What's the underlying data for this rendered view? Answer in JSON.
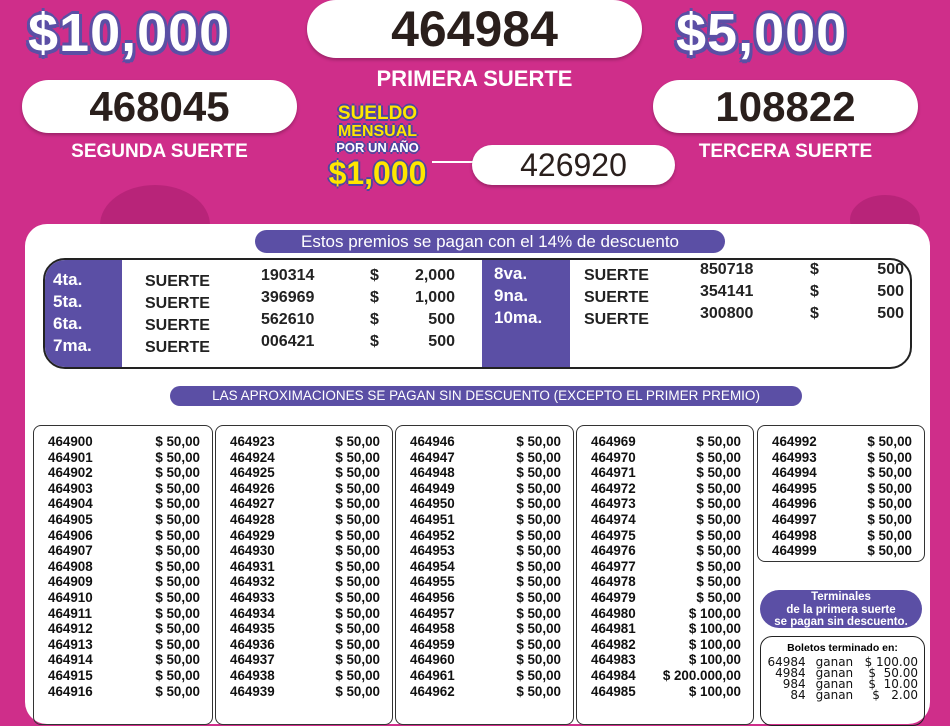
{
  "top": {
    "primera": {
      "number": "464984",
      "label": "PRIMERA SUERTE"
    },
    "segunda": {
      "prize": "$10,000",
      "number": "468045",
      "label": "SEGUNDA SUERTE"
    },
    "tercera": {
      "prize": "$5,000",
      "number": "108822",
      "label": "TERCERA SUERTE"
    },
    "sueldo": {
      "line1": "SUELDO",
      "line2": "MENSUAL",
      "line3": "POR UN AÑO",
      "amount": "$1,000",
      "number": "426920"
    }
  },
  "discount_banner": "Estos premios se pagan con el 14% de descuento",
  "prizes_left": [
    {
      "place": "4ta.",
      "word": "SUERTE",
      "number": "190314",
      "cur": "$",
      "amount": "2,000"
    },
    {
      "place": "5ta.",
      "word": "SUERTE",
      "number": "396969",
      "cur": "$",
      "amount": "1,000"
    },
    {
      "place": "6ta.",
      "word": "SUERTE",
      "number": "562610",
      "cur": "$",
      "amount": "500"
    },
    {
      "place": "7ma.",
      "word": "SUERTE",
      "number": "006421",
      "cur": "$",
      "amount": "500"
    }
  ],
  "prizes_right": [
    {
      "place": "8va.",
      "word": "SUERTE",
      "number": "850718",
      "cur": "$",
      "amount": "500"
    },
    {
      "place": "9na.",
      "word": "SUERTE",
      "number": "354141",
      "cur": "$",
      "amount": "500"
    },
    {
      "place": "10ma.",
      "word": "SUERTE",
      "number": "300800",
      "cur": "$",
      "amount": "500"
    }
  ],
  "approx_banner": "LAS APROXIMACIONES SE PAGAN SIN DESCUENTO (EXCEPTO EL PRIMER PREMIO)",
  "approximations": [
    [
      [
        "464900",
        "$ 50,00"
      ],
      [
        "464901",
        "$ 50,00"
      ],
      [
        "464902",
        "$ 50,00"
      ],
      [
        "464903",
        "$ 50,00"
      ],
      [
        "464904",
        "$ 50,00"
      ],
      [
        "464905",
        "$ 50,00"
      ],
      [
        "464906",
        "$ 50,00"
      ],
      [
        "464907",
        "$ 50,00"
      ],
      [
        "464908",
        "$ 50,00"
      ],
      [
        "464909",
        "$ 50,00"
      ],
      [
        "464910",
        "$ 50,00"
      ],
      [
        "464911",
        "$ 50,00"
      ],
      [
        "464912",
        "$ 50,00"
      ],
      [
        "464913",
        "$ 50,00"
      ],
      [
        "464914",
        "$ 50,00"
      ],
      [
        "464915",
        "$ 50,00"
      ],
      [
        "464916",
        "$ 50,00"
      ]
    ],
    [
      [
        "464923",
        "$ 50,00"
      ],
      [
        "464924",
        "$ 50,00"
      ],
      [
        "464925",
        "$ 50,00"
      ],
      [
        "464926",
        "$ 50,00"
      ],
      [
        "464927",
        "$ 50,00"
      ],
      [
        "464928",
        "$ 50,00"
      ],
      [
        "464929",
        "$ 50,00"
      ],
      [
        "464930",
        "$ 50,00"
      ],
      [
        "464931",
        "$ 50,00"
      ],
      [
        "464932",
        "$ 50,00"
      ],
      [
        "464933",
        "$ 50,00"
      ],
      [
        "464934",
        "$ 50,00"
      ],
      [
        "464935",
        "$ 50,00"
      ],
      [
        "464936",
        "$ 50,00"
      ],
      [
        "464937",
        "$ 50,00"
      ],
      [
        "464938",
        "$ 50,00"
      ],
      [
        "464939",
        "$ 50,00"
      ]
    ],
    [
      [
        "464946",
        "$ 50,00"
      ],
      [
        "464947",
        "$ 50,00"
      ],
      [
        "464948",
        "$ 50,00"
      ],
      [
        "464949",
        "$ 50,00"
      ],
      [
        "464950",
        "$ 50,00"
      ],
      [
        "464951",
        "$ 50,00"
      ],
      [
        "464952",
        "$ 50,00"
      ],
      [
        "464953",
        "$ 50,00"
      ],
      [
        "464954",
        "$ 50,00"
      ],
      [
        "464955",
        "$ 50,00"
      ],
      [
        "464956",
        "$ 50,00"
      ],
      [
        "464957",
        "$ 50,00"
      ],
      [
        "464958",
        "$ 50,00"
      ],
      [
        "464959",
        "$ 50,00"
      ],
      [
        "464960",
        "$ 50,00"
      ],
      [
        "464961",
        "$ 50,00"
      ],
      [
        "464962",
        "$ 50,00"
      ]
    ],
    [
      [
        "464969",
        "$ 50,00"
      ],
      [
        "464970",
        "$ 50,00"
      ],
      [
        "464971",
        "$ 50,00"
      ],
      [
        "464972",
        "$ 50,00"
      ],
      [
        "464973",
        "$ 50,00"
      ],
      [
        "464974",
        "$ 50,00"
      ],
      [
        "464975",
        "$ 50,00"
      ],
      [
        "464976",
        "$ 50,00"
      ],
      [
        "464977",
        "$ 50,00"
      ],
      [
        "464978",
        "$ 50,00"
      ],
      [
        "464979",
        "$ 50,00"
      ],
      [
        "464980",
        "$ 100,00"
      ],
      [
        "464981",
        "$ 100,00"
      ],
      [
        "464982",
        "$ 100,00"
      ],
      [
        "464983",
        "$ 100,00"
      ],
      [
        "464984",
        "$ 200.000,00"
      ],
      [
        "464985",
        "$ 100,00"
      ]
    ],
    [
      [
        "464992",
        "$ 50,00"
      ],
      [
        "464993",
        "$ 50,00"
      ],
      [
        "464994",
        "$ 50,00"
      ],
      [
        "464995",
        "$ 50,00"
      ],
      [
        "464996",
        "$ 50,00"
      ],
      [
        "464997",
        "$ 50,00"
      ],
      [
        "464998",
        "$ 50,00"
      ],
      [
        "464999",
        "$ 50,00"
      ]
    ]
  ],
  "terminales": {
    "line1": "Terminales",
    "line2": "de la primera suerte",
    "line3": "se pagan sin descuento."
  },
  "boletos": {
    "title": "Boletos terminado en:",
    "rows": [
      {
        "ending": "64984",
        "word": "ganan",
        "amount": "$ 100.00"
      },
      {
        "ending": "4984",
        "word": "ganan",
        "amount": "$  50.00"
      },
      {
        "ending": "984",
        "word": "ganan",
        "amount": "$  10.00"
      },
      {
        "ending": "84",
        "word": "ganan",
        "amount": "$   2.00"
      }
    ]
  },
  "colors": {
    "background": "#cf2e8a",
    "accent": "#5b4fa5",
    "highlight": "#ffe600"
  }
}
